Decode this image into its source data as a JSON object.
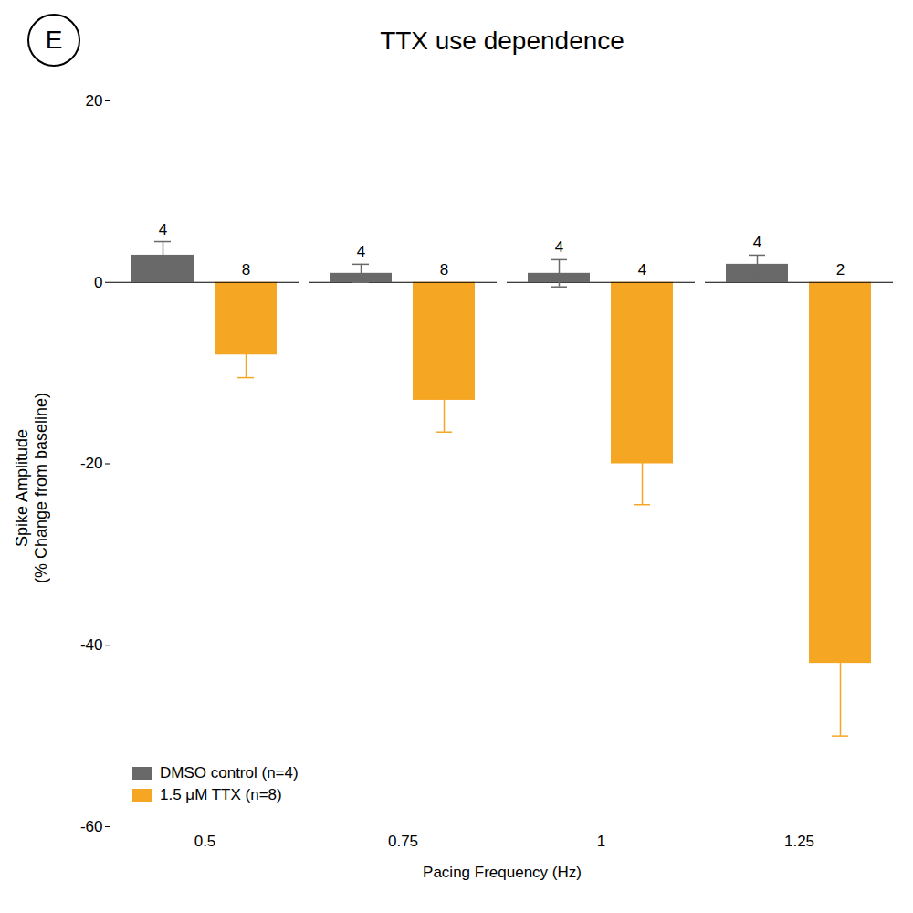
{
  "chart_data": {
    "type": "bar",
    "title": "TTX use dependence",
    "annotations": [
      "E"
    ],
    "xlabel": "Pacing Frequency (Hz)",
    "ylabel": "Spike Amplitude\n(% Change from baseline)",
    "categories": [
      "0.5",
      "0.75",
      "1",
      "1.25"
    ],
    "series": [
      {
        "name": "DMSO control (n=4)",
        "color": "#696969",
        "values": [
          3.0,
          1.0,
          1.0,
          2.0
        ],
        "errors": [
          1.5,
          1.0,
          1.5,
          1.0
        ],
        "n_labels": [
          "4",
          "4",
          "4",
          "4"
        ]
      },
      {
        "name": "1.5 μM TTX (n=8)",
        "color": "#F5A623",
        "values": [
          -8.0,
          -13.0,
          -20.0,
          -42.0
        ],
        "errors": [
          2.5,
          3.5,
          4.5,
          8.0
        ],
        "n_labels": [
          "8",
          "8",
          "4",
          "2"
        ]
      }
    ],
    "ylim": [
      -60,
      20
    ],
    "yticks": [
      -60,
      -40,
      -20,
      0,
      20
    ],
    "grid": false,
    "legend": "lower left"
  }
}
